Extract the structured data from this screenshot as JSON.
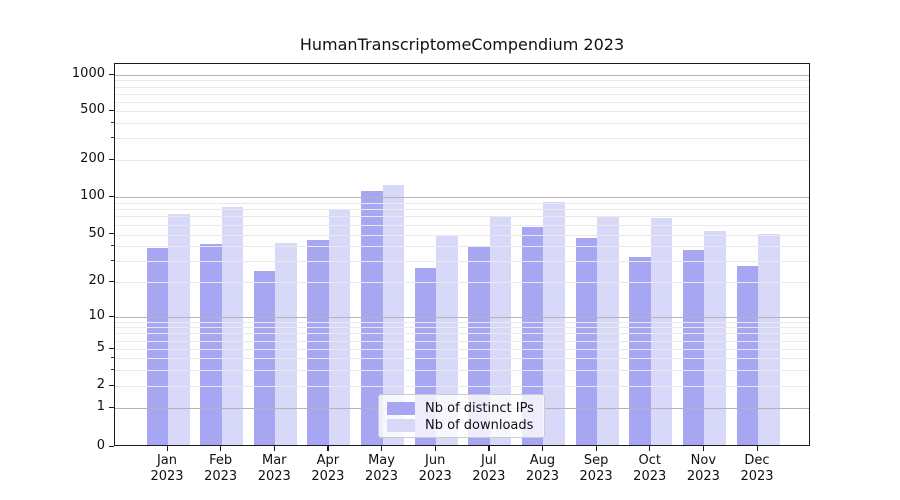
{
  "chart_data": {
    "type": "bar",
    "title": "HumanTranscriptomeCompendium 2023",
    "categories": [
      "Jan",
      "Feb",
      "Mar",
      "Apr",
      "May",
      "Jun",
      "Jul",
      "Aug",
      "Sep",
      "Oct",
      "Nov",
      "Dec"
    ],
    "year_label": "2023",
    "series": [
      {
        "name": "Nb of distinct IPs",
        "color": "#a6a6f2",
        "values": [
          37,
          40,
          24,
          43,
          108,
          25,
          38,
          55,
          45,
          31,
          36,
          26
        ]
      },
      {
        "name": "Nb of downloads",
        "color": "#d8d8f8",
        "values": [
          70,
          80,
          41,
          77,
          120,
          47,
          66,
          88,
          66,
          65,
          51,
          49
        ]
      }
    ],
    "y_axis": {
      "scale": "symlog",
      "tick_labels": [
        "0",
        "1",
        "2",
        "5",
        "10",
        "20",
        "50",
        "100",
        "200",
        "500",
        "1000"
      ],
      "tick_values": [
        0,
        1,
        2,
        5,
        10,
        20,
        50,
        100,
        200,
        500,
        1000
      ],
      "major_grid_values": [
        1,
        10,
        100,
        1000
      ],
      "range": [
        0,
        1000
      ],
      "grid": "on"
    },
    "x_axis": {
      "label_line2": "2023"
    },
    "legend": {
      "position": "bottom-center",
      "entries": [
        "Nb of distinct IPs",
        "Nb of downloads"
      ]
    }
  }
}
